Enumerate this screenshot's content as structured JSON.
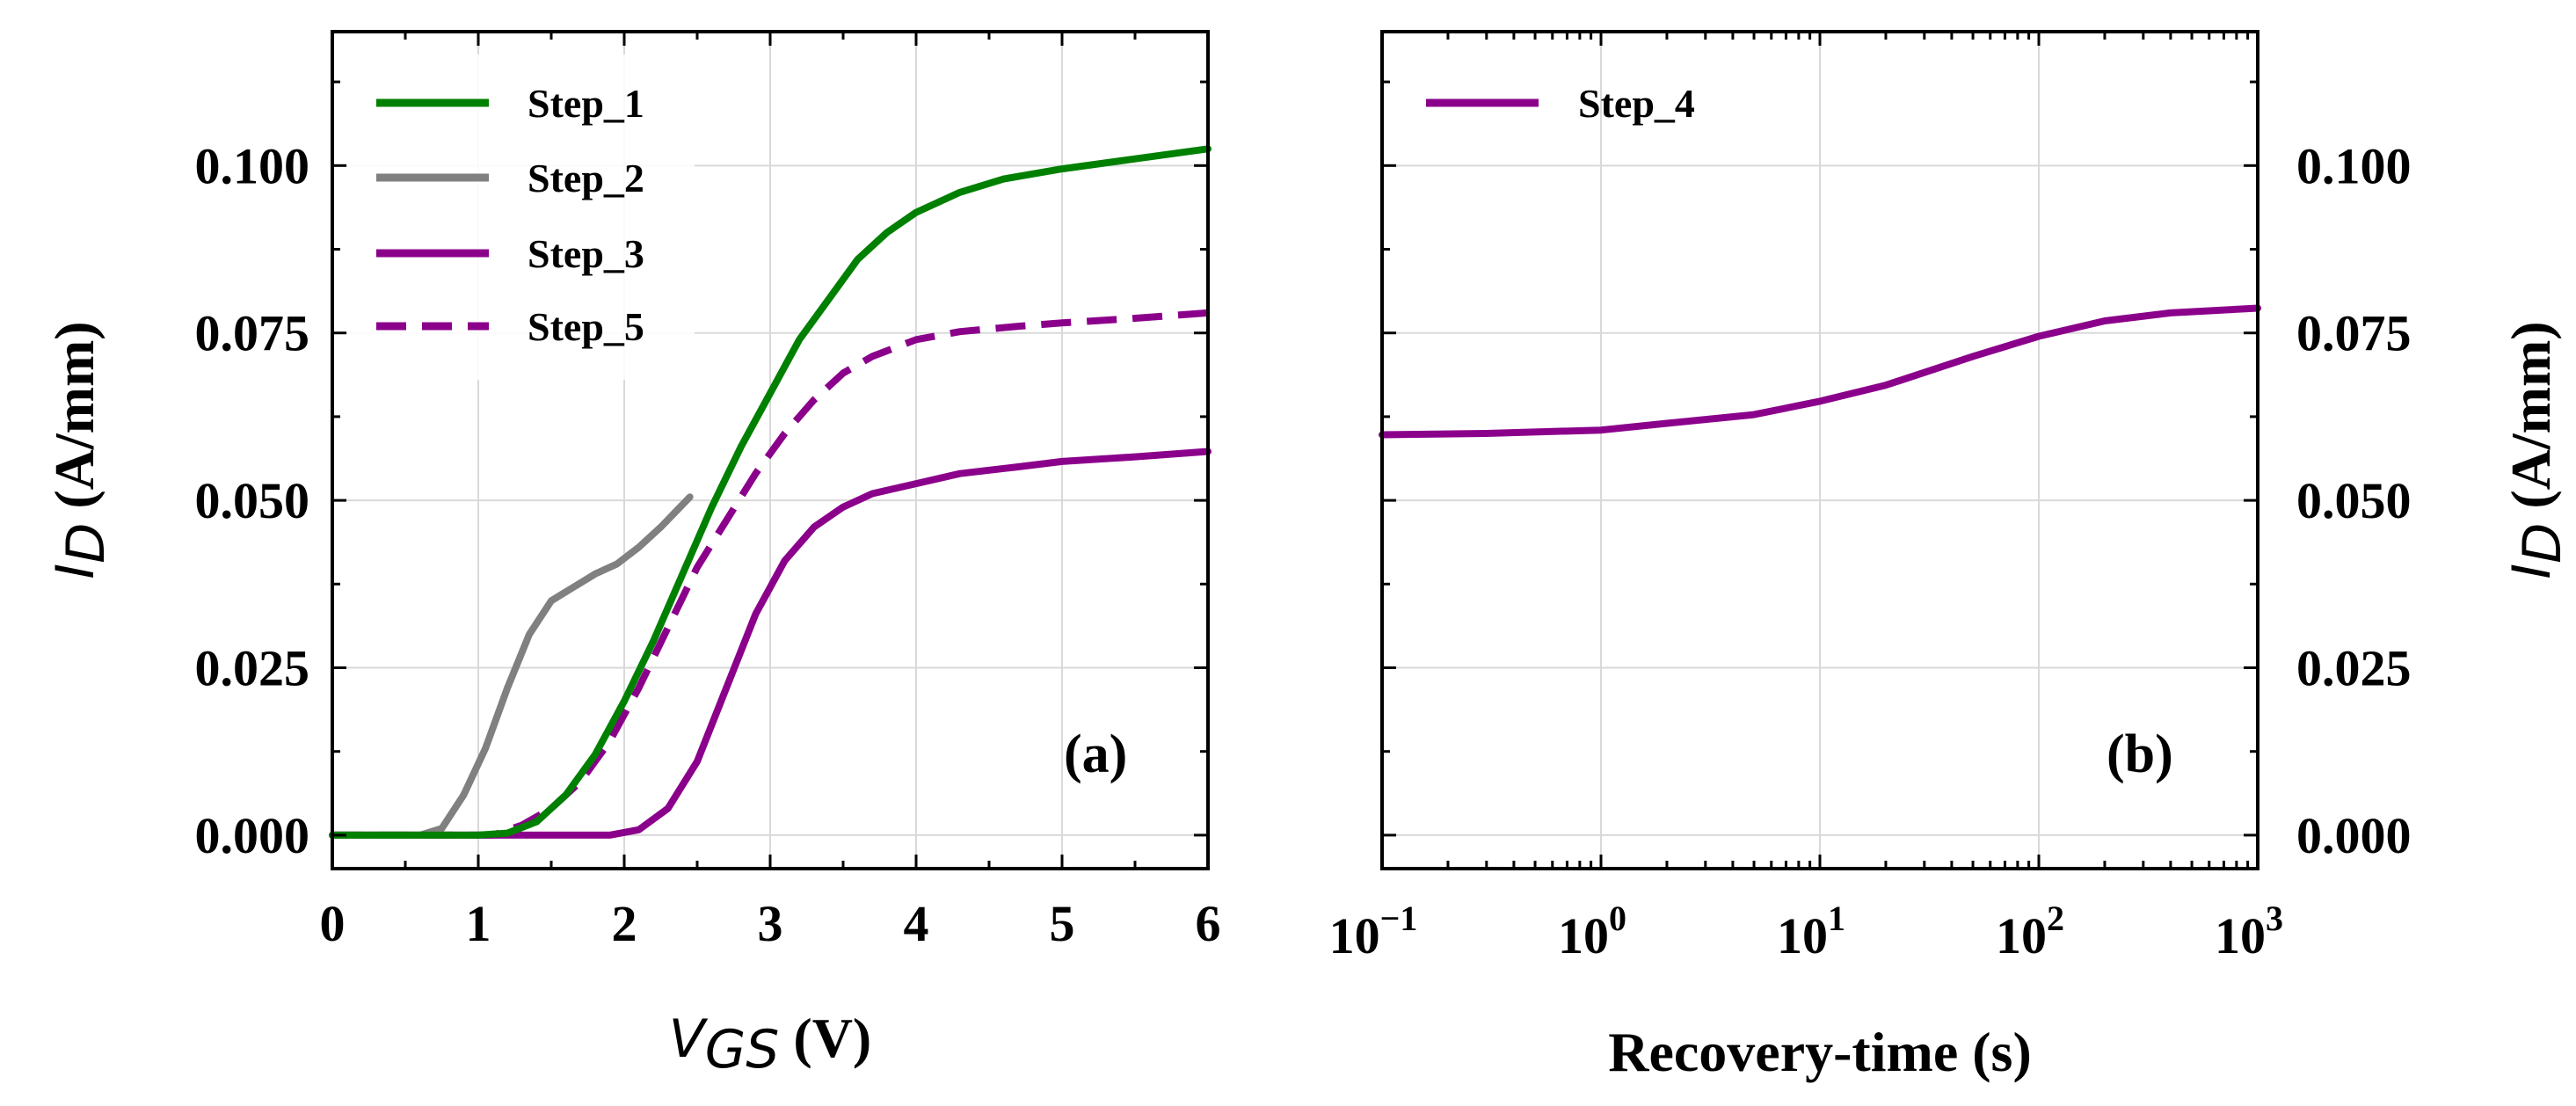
{
  "chart_data": [
    {
      "panel": "(a)",
      "type": "line",
      "xlabel_main": "V",
      "xlabel_sub": "GS",
      "xlabel_unit": " (V)",
      "ylabel_main": "I",
      "ylabel_sub": "D",
      "ylabel_unit": " (A/mm)",
      "xlim": [
        0,
        6
      ],
      "ylim": [
        -0.005,
        0.12
      ],
      "xticks": [
        0,
        1,
        2,
        3,
        4,
        5,
        6
      ],
      "xtick_labels": [
        "0",
        "1",
        "2",
        "3",
        "4",
        "5",
        "6"
      ],
      "yticks": [
        0,
        0.025,
        0.05,
        0.075,
        0.1
      ],
      "ytick_labels": [
        "0.000",
        "0.025",
        "0.050",
        "0.075",
        "0.100"
      ],
      "legend_position": "top-left",
      "series": [
        {
          "name": "Step_1",
          "color": "#008000",
          "dash": "solid",
          "x": [
            0,
            1.0,
            1.2,
            1.4,
            1.6,
            1.8,
            2.0,
            2.2,
            2.4,
            2.6,
            2.8,
            3.0,
            3.2,
            3.4,
            3.6,
            3.8,
            4.0,
            4.3,
            4.6,
            5.0,
            5.5,
            6.0
          ],
          "y": [
            0,
            0,
            0.0003,
            0.002,
            0.006,
            0.012,
            0.02,
            0.029,
            0.039,
            0.049,
            0.058,
            0.066,
            0.074,
            0.08,
            0.086,
            0.09,
            0.093,
            0.096,
            0.098,
            0.0995,
            0.101,
            0.1025
          ]
        },
        {
          "name": "Step_2",
          "color": "#808080",
          "dash": "solid",
          "x": [
            0,
            0.6,
            0.75,
            0.9,
            1.05,
            1.2,
            1.35,
            1.5,
            1.65,
            1.8,
            1.95,
            2.1,
            2.25,
            2.45
          ],
          "y": [
            0,
            0,
            0.001,
            0.006,
            0.013,
            0.022,
            0.03,
            0.035,
            0.037,
            0.039,
            0.0405,
            0.043,
            0.046,
            0.0505
          ]
        },
        {
          "name": "Step_3",
          "color": "#8b008b",
          "dash": "solid",
          "x": [
            0,
            1.9,
            2.1,
            2.3,
            2.5,
            2.7,
            2.9,
            3.1,
            3.3,
            3.5,
            3.7,
            4.0,
            4.3,
            4.7,
            5.0,
            5.5,
            6.0
          ],
          "y": [
            0,
            0,
            0.0008,
            0.004,
            0.011,
            0.022,
            0.033,
            0.041,
            0.046,
            0.049,
            0.051,
            0.0525,
            0.054,
            0.055,
            0.0558,
            0.0565,
            0.0573
          ]
        },
        {
          "name": "Step_5",
          "color": "#8b008b",
          "dash": "dashed",
          "x": [
            0,
            1.1,
            1.3,
            1.5,
            1.7,
            1.9,
            2.1,
            2.3,
            2.5,
            2.7,
            2.9,
            3.1,
            3.3,
            3.5,
            3.7,
            4.0,
            4.3,
            4.7,
            5.0,
            5.5,
            6.0
          ],
          "y": [
            0,
            0,
            0.0015,
            0.004,
            0.008,
            0.014,
            0.022,
            0.031,
            0.04,
            0.047,
            0.054,
            0.06,
            0.065,
            0.069,
            0.0715,
            0.074,
            0.0752,
            0.076,
            0.0765,
            0.0772,
            0.078
          ]
        }
      ]
    },
    {
      "panel": "(b)",
      "type": "line",
      "xscale": "log",
      "xlabel": "Recovery-time (s)",
      "ylabel_main": "I",
      "ylabel_sub": "D",
      "ylabel_unit": " (A/mm)",
      "xlim": [
        0.1,
        1000
      ],
      "ylim": [
        -0.005,
        0.12
      ],
      "xtick_base": "10",
      "xtick_exponents": [
        "−1",
        "0",
        "1",
        "2",
        "3"
      ],
      "ytick_labels": [
        "0.000",
        "0.025",
        "0.050",
        "0.075",
        "0.100"
      ],
      "legend_position": "top-left",
      "series": [
        {
          "name": "Step_4",
          "color": "#8b008b",
          "dash": "solid",
          "x": [
            0.1,
            0.3,
            1,
            2,
            5,
            10,
            20,
            50,
            100,
            200,
            400,
            1000
          ],
          "y": [
            0.0598,
            0.06,
            0.0605,
            0.0615,
            0.0628,
            0.0648,
            0.0672,
            0.0715,
            0.0745,
            0.0768,
            0.078,
            0.0787
          ]
        }
      ]
    }
  ]
}
